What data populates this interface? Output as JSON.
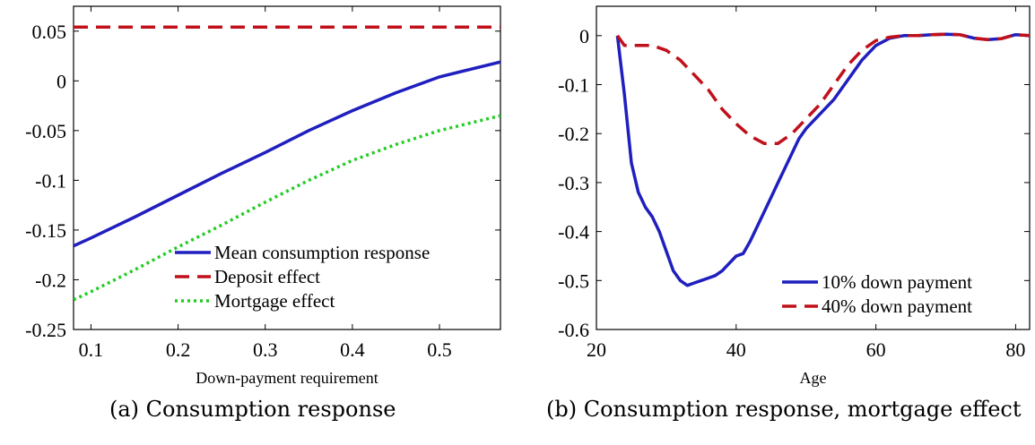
{
  "chart_data": [
    {
      "type": "line",
      "caption": "(a) Consumption response",
      "xlabel": "Down-payment requirement",
      "ylabel": "",
      "xlim": [
        0.08,
        0.57
      ],
      "ylim": [
        -0.25,
        0.075
      ],
      "xticks": [
        0.1,
        0.2,
        0.3,
        0.4,
        0.5
      ],
      "xtick_labels": [
        "0.1",
        "0.2",
        "0.3",
        "0.4",
        "0.5"
      ],
      "yticks": [
        -0.25,
        -0.2,
        -0.15,
        -0.1,
        -0.05,
        0,
        0.05
      ],
      "ytick_labels": [
        "-0.25",
        "-0.2",
        "-0.15",
        "-0.1",
        "-0.05",
        "0",
        "0.05"
      ],
      "legend_position": "bottom-right",
      "series": [
        {
          "name": "Mean consumption response",
          "color": "#1f1fbf",
          "style": "solid",
          "x": [
            0.08,
            0.1,
            0.15,
            0.2,
            0.25,
            0.3,
            0.35,
            0.4,
            0.45,
            0.5,
            0.57
          ],
          "y": [
            -0.166,
            -0.158,
            -0.137,
            -0.115,
            -0.093,
            -0.072,
            -0.05,
            -0.03,
            -0.012,
            0.004,
            0.019
          ]
        },
        {
          "name": "Deposit effect",
          "color": "#c0101a",
          "style": "dashed",
          "x": [
            0.08,
            0.2,
            0.3,
            0.4,
            0.5,
            0.57
          ],
          "y": [
            0.054,
            0.054,
            0.054,
            0.054,
            0.054,
            0.054
          ]
        },
        {
          "name": "Mortgage effect",
          "color": "#22cc22",
          "style": "dotted",
          "x": [
            0.08,
            0.1,
            0.15,
            0.2,
            0.25,
            0.3,
            0.35,
            0.4,
            0.45,
            0.5,
            0.57
          ],
          "y": [
            -0.22,
            -0.212,
            -0.19,
            -0.167,
            -0.145,
            -0.122,
            -0.1,
            -0.08,
            -0.064,
            -0.05,
            -0.035
          ]
        }
      ]
    },
    {
      "type": "line",
      "caption": "(b) Consumption response, mortgage effect",
      "xlabel": "Age",
      "ylabel": "",
      "xlim": [
        20,
        82
      ],
      "ylim": [
        -0.6,
        0.06
      ],
      "xticks": [
        20,
        40,
        60,
        80
      ],
      "xtick_labels": [
        "20",
        "40",
        "60",
        "80"
      ],
      "yticks": [
        -0.6,
        -0.5,
        -0.4,
        -0.3,
        -0.2,
        -0.1,
        0
      ],
      "ytick_labels": [
        "-0.6",
        "-0.5",
        "-0.4",
        "-0.3",
        "-0.2",
        "-0.1",
        "0"
      ],
      "legend_position": "bottom-right",
      "series": [
        {
          "name": "10% down payment",
          "color": "#1f1fbf",
          "style": "solid",
          "x": [
            23,
            24,
            25,
            26,
            27,
            28,
            29,
            30,
            31,
            32,
            33,
            34,
            35,
            36,
            37,
            38,
            39,
            40,
            41,
            42,
            43,
            44,
            45,
            46,
            47,
            48,
            49,
            50,
            52,
            54,
            56,
            58,
            60,
            62,
            64,
            66,
            68,
            70,
            72,
            74,
            76,
            78,
            80,
            82
          ],
          "y": [
            0,
            -0.12,
            -0.26,
            -0.32,
            -0.35,
            -0.37,
            -0.4,
            -0.44,
            -0.48,
            -0.5,
            -0.51,
            -0.505,
            -0.5,
            -0.495,
            -0.49,
            -0.48,
            -0.465,
            -0.45,
            -0.445,
            -0.42,
            -0.39,
            -0.36,
            -0.33,
            -0.3,
            -0.27,
            -0.24,
            -0.21,
            -0.19,
            -0.16,
            -0.13,
            -0.09,
            -0.05,
            -0.02,
            -0.005,
            0,
            0,
            0.002,
            0.003,
            0.002,
            -0.005,
            -0.008,
            -0.006,
            0.002,
            0
          ]
        },
        {
          "name": "40% down payment",
          "color": "#c0101a",
          "style": "dashed",
          "x": [
            23,
            24,
            26,
            28,
            30,
            32,
            34,
            36,
            38,
            40,
            42,
            44,
            46,
            48,
            50,
            52,
            54,
            56,
            58,
            60,
            62,
            64,
            66,
            68,
            70,
            72,
            74,
            76,
            78,
            80,
            82
          ],
          "y": [
            0,
            -0.02,
            -0.02,
            -0.02,
            -0.03,
            -0.05,
            -0.08,
            -0.11,
            -0.15,
            -0.18,
            -0.205,
            -0.22,
            -0.22,
            -0.2,
            -0.17,
            -0.14,
            -0.1,
            -0.06,
            -0.03,
            -0.01,
            -0.003,
            0,
            0,
            0.002,
            0.003,
            0.002,
            -0.005,
            -0.008,
            -0.006,
            0.002,
            0
          ]
        }
      ]
    }
  ]
}
